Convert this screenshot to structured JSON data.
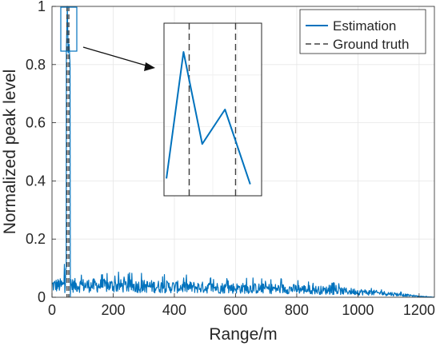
{
  "chart_data": {
    "type": "line",
    "xlabel": "Range/m",
    "ylabel": "Normalized peak level",
    "xlim": [
      0,
      1250
    ],
    "ylim": [
      0,
      1
    ],
    "xticks": [
      0,
      200,
      400,
      600,
      800,
      1000,
      1200
    ],
    "yticks": [
      0,
      0.2,
      0.4,
      0.6,
      0.8,
      1
    ],
    "xtick_labels": [
      "0",
      "200",
      "400",
      "600",
      "800",
      "1000",
      "1200"
    ],
    "ytick_labels": [
      "0",
      "0.2",
      "0.4",
      "0.6",
      "0.8",
      "1"
    ],
    "grid": true,
    "legend_position": "top-right",
    "series": [
      {
        "name": "Estimation",
        "style": "solid",
        "color": "#0072BD",
        "peak": {
          "x": [
            47,
            50,
            53,
            56,
            59
          ],
          "y": [
            0.85,
            1.0,
            0.84,
            0.87,
            0.8
          ]
        },
        "noise_envelope": {
          "x": [
            0,
            100,
            300,
            600,
            800,
            1000,
            1100,
            1200,
            1250
          ],
          "y": [
            0.065,
            0.065,
            0.06,
            0.05,
            0.045,
            0.03,
            0.02,
            0.005,
            0.0
          ]
        }
      },
      {
        "name": "Ground truth",
        "style": "dashed",
        "color": "#404040",
        "x": [
          49,
          55
        ]
      }
    ],
    "inset": {
      "source_xlim": [
        46,
        58
      ],
      "source_ylim": [
        0.85,
        1.0
      ],
      "estimation": {
        "x": [
          46.3,
          48.4,
          50.7,
          53.5,
          56.6
        ],
        "y": [
          0.73,
          0.95,
          0.79,
          0.85,
          0.72
        ]
      },
      "ground_truth_x": [
        49.1,
        54.8
      ]
    }
  }
}
